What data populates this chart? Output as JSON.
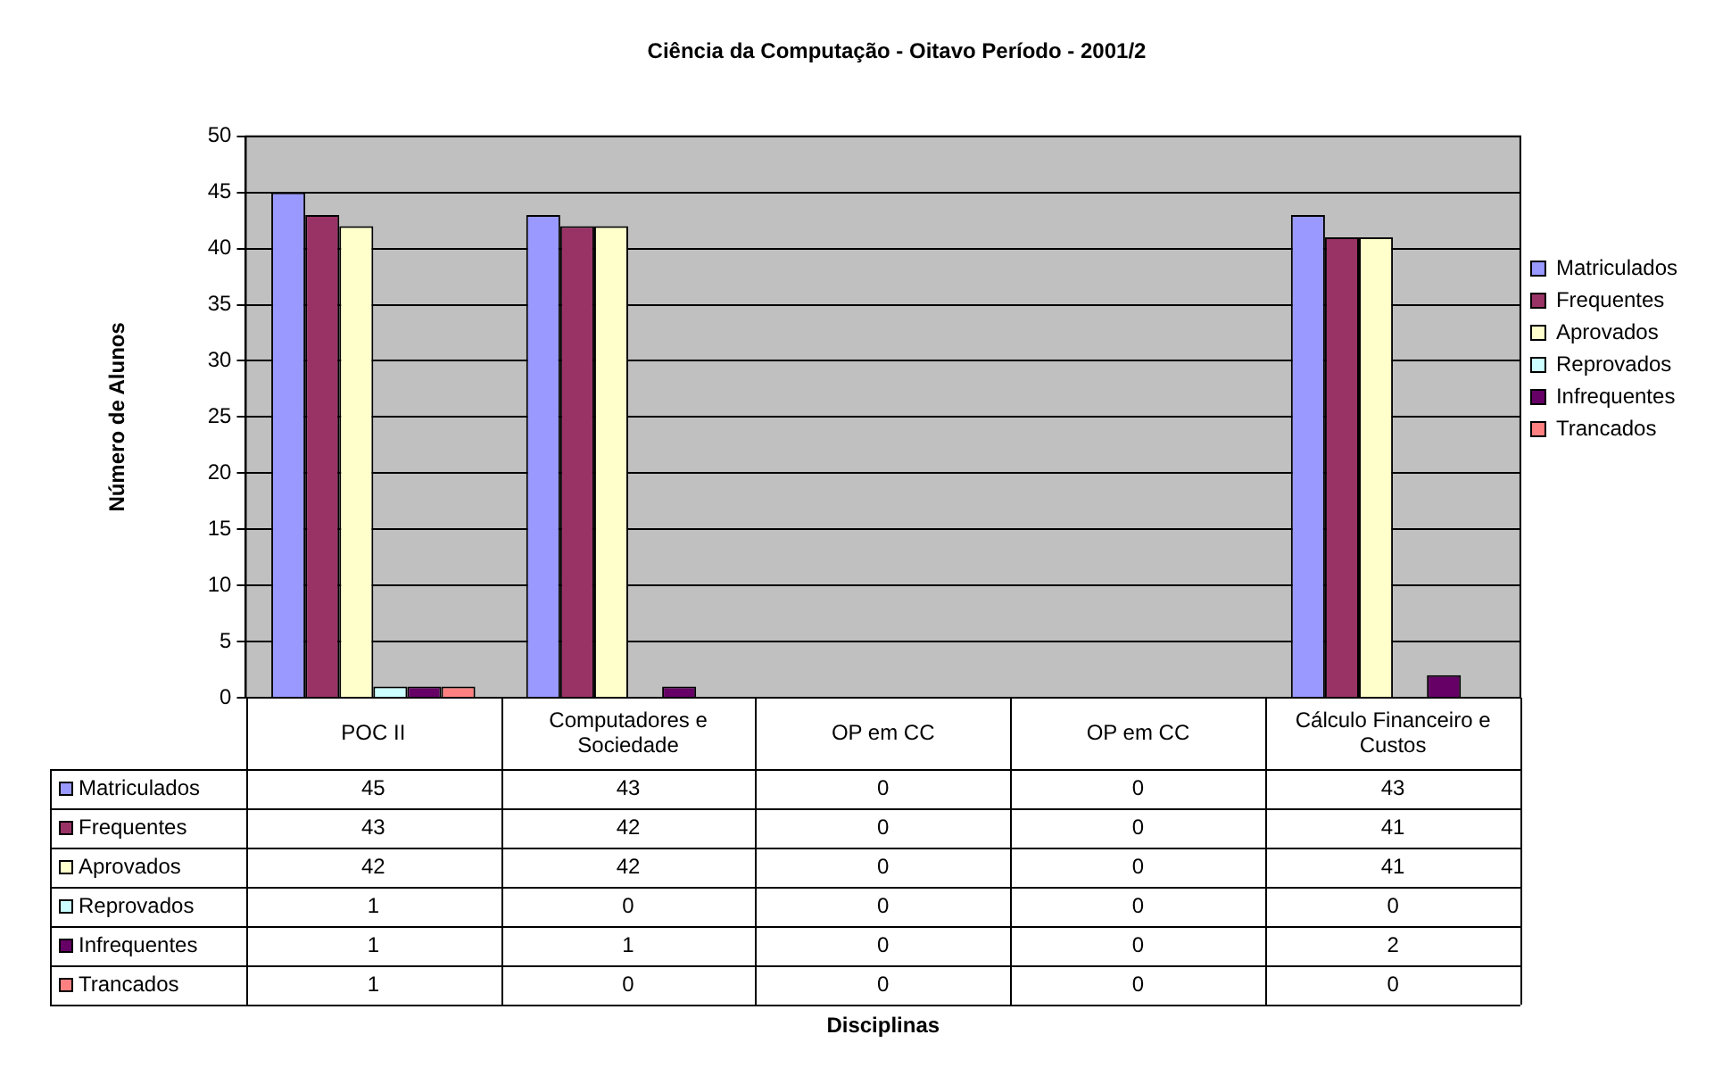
{
  "chart_data": {
    "type": "bar",
    "title": "Ciência da Computação - Oitavo Período - 2001/2",
    "annotations": [
      "Disciplinas"
    ],
    "ylabel": "Número de Alunos",
    "categories": [
      "POC II",
      "Computadores e Sociedade",
      "OP em CC",
      "OP em CC",
      "Cálculo Financeiro e Custos"
    ],
    "series": [
      {
        "name": "Matriculados",
        "color": "#9999ff",
        "values": [
          45,
          43,
          0,
          0,
          43
        ]
      },
      {
        "name": "Frequentes",
        "color": "#993366",
        "values": [
          43,
          42,
          0,
          0,
          41
        ]
      },
      {
        "name": "Aprovados",
        "color": "#ffffcc",
        "values": [
          42,
          42,
          0,
          0,
          41
        ]
      },
      {
        "name": "Reprovados",
        "color": "#ccffff",
        "values": [
          1,
          0,
          0,
          0,
          0
        ]
      },
      {
        "name": "Infrequentes",
        "color": "#660066",
        "values": [
          1,
          1,
          0,
          0,
          2
        ]
      },
      {
        "name": "Trancados",
        "color": "#ff8080",
        "values": [
          1,
          0,
          0,
          0,
          0
        ]
      }
    ],
    "ylim": [
      0,
      50
    ],
    "yticks": [
      0,
      5,
      10,
      15,
      20,
      25,
      30,
      35,
      40,
      45,
      50
    ],
    "grid": "y",
    "legend": "right",
    "data_labels": true
  }
}
